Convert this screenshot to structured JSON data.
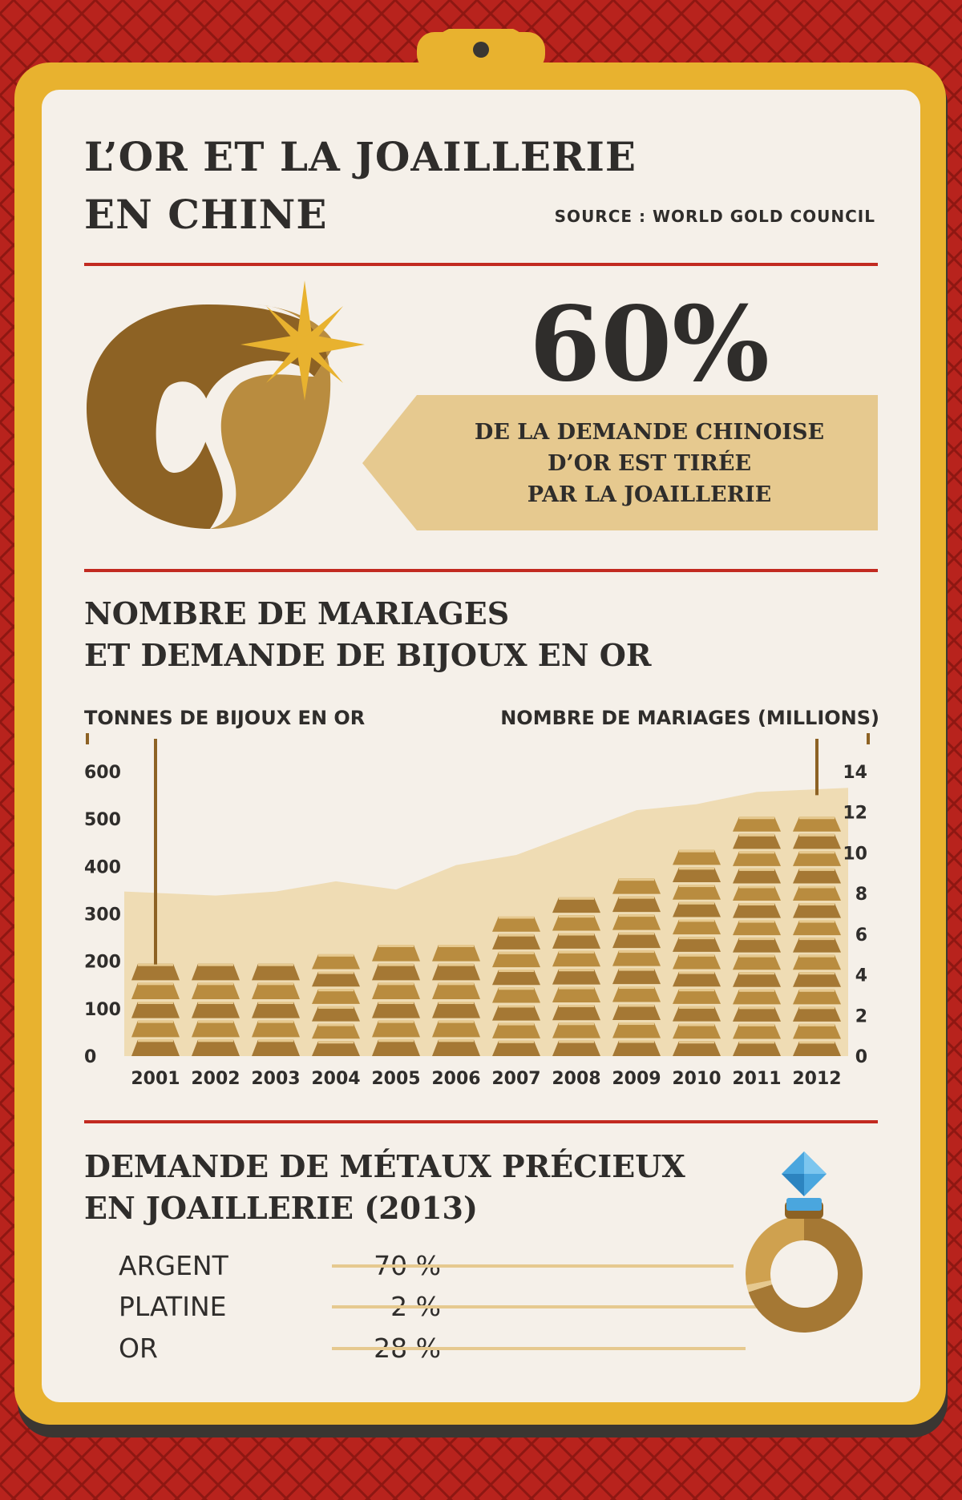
{
  "header": {
    "title_line1": "L’OR ET LA JOAILLERIE",
    "title_line2": "EN CHINE",
    "source": "SOURCE : WORLD GOLD COUNCIL"
  },
  "highlight": {
    "value": "60%",
    "line1": "DE LA DEMANDE CHINOISE",
    "line2": "D’OR EST TIRÉE",
    "line3": "PAR LA JOAILLERIE"
  },
  "chart_section": {
    "title_line1": "NOMBRE DE MARIAGES",
    "title_line2": "ET DEMANDE DE BIJOUX EN OR"
  },
  "metals": {
    "title_line1": "DEMANDE DE MÉTAUX PRÉCIEUX",
    "title_line2": "EN JOAILLERIE (2013)",
    "items": [
      {
        "name": "ARGENT",
        "pct": "70 %"
      },
      {
        "name": "PLATINE",
        "pct": "2 %"
      },
      {
        "name": "OR",
        "pct": "28 %"
      }
    ],
    "values": [
      70,
      2,
      28
    ]
  },
  "colors": {
    "background_red": "#b8231d",
    "frame_gold": "#e8b22f",
    "card": "#f5f0e9",
    "rule_red": "#c22a20",
    "gold_dark": "#8d6224",
    "gold_mid": "#b98c3f",
    "gold_light": "#e6c98f",
    "area_fill": "#efdcb4",
    "text_dark": "#2f2d2b",
    "gem_blue": "#4aa6de"
  },
  "icons": [
    "horseshoe-icon",
    "sparkle-icon",
    "gold-bar-icon",
    "ring-icon",
    "diamond-icon"
  ],
  "chart_data": {
    "type": "bar",
    "categories": [
      "2001",
      "2002",
      "2003",
      "2004",
      "2005",
      "2006",
      "2007",
      "2008",
      "2009",
      "2010",
      "2011",
      "2012"
    ],
    "series": [
      {
        "name": "TONNES DE BIJOUX EN OR",
        "type": "bar",
        "axis": "left",
        "values": [
          200,
          200,
          200,
          220,
          240,
          240,
          300,
          340,
          380,
          440,
          510,
          510
        ]
      },
      {
        "name": "NOMBRE DE MARIAGES (MILLIONS)",
        "type": "area",
        "axis": "right",
        "values": [
          8.1,
          7.9,
          8.1,
          8.6,
          8.2,
          9.4,
          9.9,
          11.0,
          12.1,
          12.4,
          13.0,
          13.2
        ]
      }
    ],
    "left_axis": {
      "label": "TONNES DE BIJOUX EN OR",
      "min": 0,
      "max": 600,
      "ticks": [
        "0",
        "100",
        "200",
        "300",
        "400",
        "500",
        "600"
      ]
    },
    "right_axis": {
      "label": "NOMBRE DE MARIAGES (MILLIONS)",
      "min": 0,
      "max": 14,
      "ticks": [
        "0",
        "2",
        "4",
        "6",
        "8",
        "10",
        "12",
        "14"
      ]
    }
  }
}
